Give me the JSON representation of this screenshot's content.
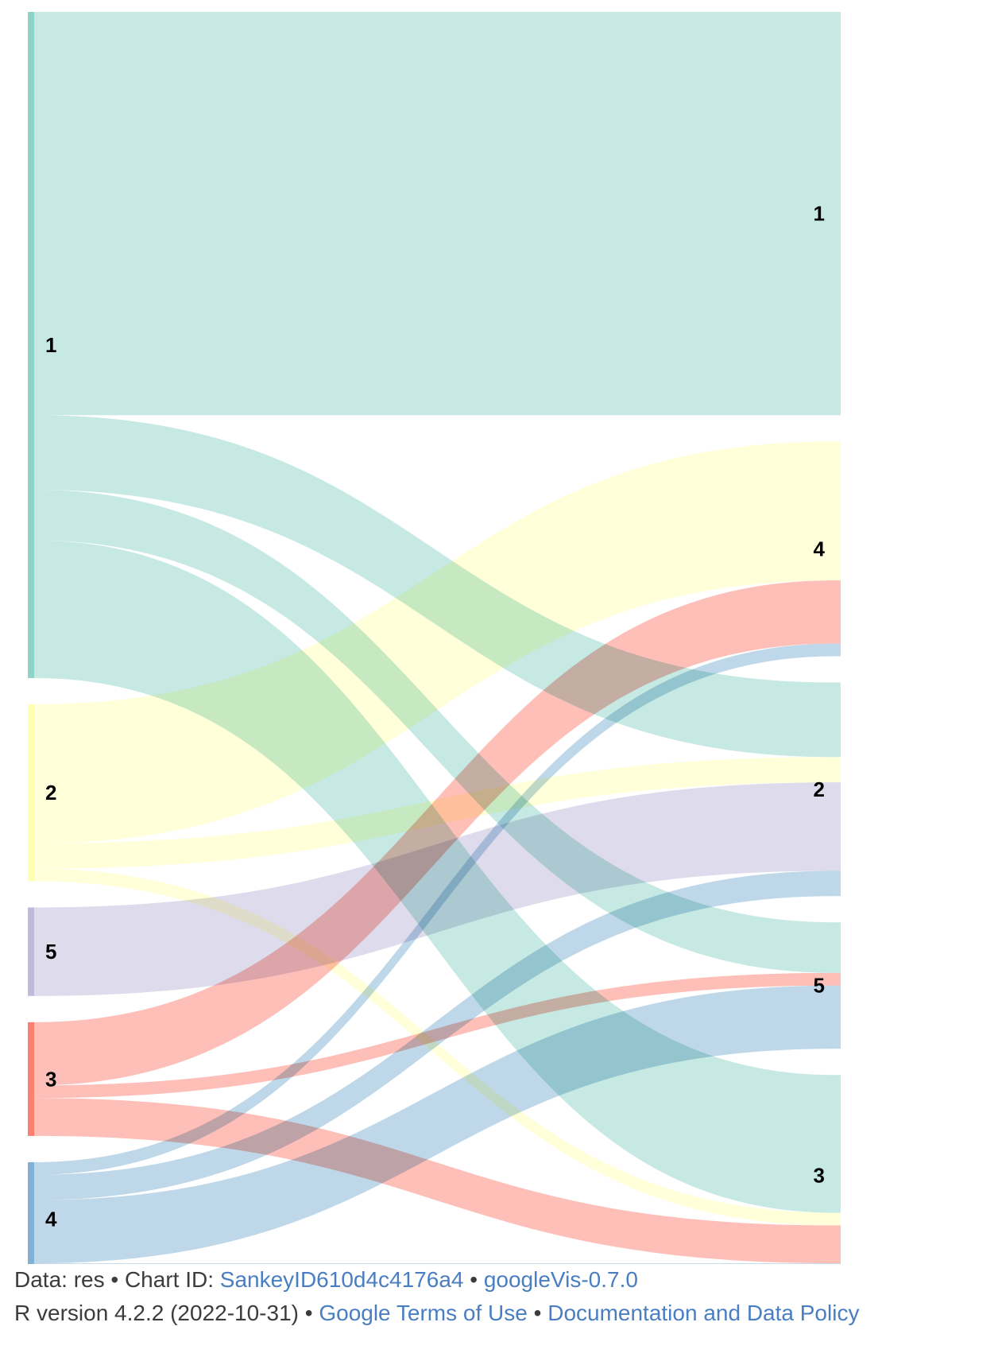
{
  "chart_data": {
    "type": "sankey",
    "title": "",
    "left_nodes": [
      {
        "label": "1",
        "color": "#8dd3c7"
      },
      {
        "label": "2",
        "color": "#ffffb3"
      },
      {
        "label": "5",
        "color": "#bebada"
      },
      {
        "label": "3",
        "color": "#fb8072"
      },
      {
        "label": "4",
        "color": "#80b1d3"
      }
    ],
    "right_nodes": [
      {
        "label": "1"
      },
      {
        "label": "4"
      },
      {
        "label": "2"
      },
      {
        "label": "5"
      },
      {
        "label": "3"
      }
    ],
    "links": [
      {
        "from": "1",
        "to": "1",
        "value": 319
      },
      {
        "from": "1",
        "to": "2",
        "value": 59
      },
      {
        "from": "1",
        "to": "5",
        "value": 40
      },
      {
        "from": "1",
        "to": "3",
        "value": 109
      },
      {
        "from": "2",
        "to": "4",
        "value": 110
      },
      {
        "from": "2",
        "to": "2",
        "value": 20
      },
      {
        "from": "2",
        "to": "3",
        "value": 10
      },
      {
        "from": "5",
        "to": "2",
        "value": 70
      },
      {
        "from": "3",
        "to": "4",
        "value": 50
      },
      {
        "from": "3",
        "to": "5",
        "value": 10
      },
      {
        "from": "3",
        "to": "3",
        "value": 30
      },
      {
        "from": "4",
        "to": "4",
        "value": 10
      },
      {
        "from": "4",
        "to": "2",
        "value": 20
      },
      {
        "from": "4",
        "to": "5",
        "value": 50
      },
      {
        "from": "4",
        "to": "3",
        "value": 10
      }
    ]
  },
  "footer": {
    "line1": {
      "prefix": "Data: res • Chart ID: ",
      "chart_id_link": "SankeyID610d4c4176a4",
      "separator": " • ",
      "version_link": "googleVis-0.7.0"
    },
    "line2": {
      "prefix": "R version 4.2.2 (2022-10-31) • ",
      "terms_link": "Google Terms of Use",
      "separator": " • ",
      "policy_link": "Documentation and Data Policy"
    }
  }
}
